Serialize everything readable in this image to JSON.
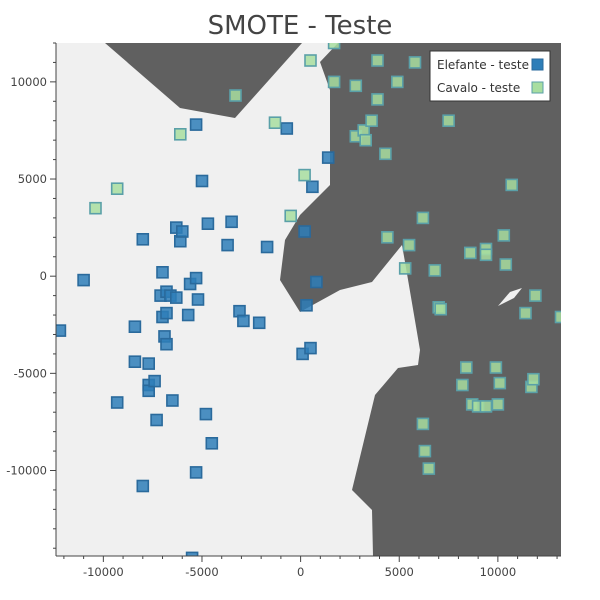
{
  "chart_data": {
    "type": "scatter",
    "title": "SMOTE - Teste",
    "xlabel": "",
    "ylabel": "",
    "xlim": [
      -12400,
      13200
    ],
    "ylim": [
      -14400,
      12000
    ],
    "x_ticks": [
      -10000,
      -5000,
      0,
      5000,
      10000
    ],
    "y_ticks": [
      -10000,
      -5000,
      0,
      5000,
      10000
    ],
    "grid": false,
    "legend_position": "top-right",
    "background_regions": [
      {
        "class": "Elefante - teste",
        "color": "#f0f0f0"
      },
      {
        "class": "Cavalo - teste",
        "color": "#606060"
      }
    ],
    "series": [
      {
        "name": "Elefante - teste",
        "color": "#2e7eb8",
        "points": [
          [
            -12200,
            -2800
          ],
          [
            -11000,
            -200
          ],
          [
            -9300,
            -6500
          ],
          [
            -8400,
            -2600
          ],
          [
            -8400,
            -4400
          ],
          [
            -8000,
            1900
          ],
          [
            -8000,
            -10800
          ],
          [
            -7700,
            -4500
          ],
          [
            -7700,
            -5600
          ],
          [
            -7700,
            -5900
          ],
          [
            -7400,
            -5400
          ],
          [
            -7300,
            -7400
          ],
          [
            -7100,
            -1000
          ],
          [
            -7000,
            200
          ],
          [
            -7000,
            -2100
          ],
          [
            -6900,
            -3100
          ],
          [
            -6800,
            -800
          ],
          [
            -6800,
            -1900
          ],
          [
            -6800,
            -3500
          ],
          [
            -6600,
            -1000
          ],
          [
            -6500,
            -6400
          ],
          [
            -6300,
            2500
          ],
          [
            -6300,
            -1100
          ],
          [
            -6100,
            1800
          ],
          [
            -6000,
            2300
          ],
          [
            -5700,
            -2000
          ],
          [
            -5600,
            -400
          ],
          [
            -5300,
            -100
          ],
          [
            -5300,
            7800
          ],
          [
            -5300,
            -10100
          ],
          [
            -5200,
            -1200
          ],
          [
            -5000,
            4900
          ],
          [
            -4800,
            -7100
          ],
          [
            -4700,
            2700
          ],
          [
            -4500,
            -8600
          ],
          [
            -3700,
            1600
          ],
          [
            -3500,
            2800
          ],
          [
            -3100,
            -1800
          ],
          [
            -2900,
            -2300
          ],
          [
            -2100,
            -2400
          ],
          [
            -1700,
            1500
          ],
          [
            -700,
            7600
          ],
          [
            100,
            -4000
          ],
          [
            200,
            2300
          ],
          [
            300,
            -1500
          ],
          [
            500,
            -3700
          ],
          [
            600,
            4600
          ],
          [
            800,
            -300
          ],
          [
            1400,
            6100
          ],
          [
            -5500,
            -14500
          ]
        ]
      },
      {
        "name": "Cavalo - teste",
        "color": "#a8dea0",
        "points": [
          [
            -10400,
            3500
          ],
          [
            -9300,
            4500
          ],
          [
            -6100,
            7300
          ],
          [
            -3300,
            9300
          ],
          [
            -1300,
            7900
          ],
          [
            -500,
            3100
          ],
          [
            200,
            5200
          ],
          [
            500,
            11100
          ],
          [
            1700,
            12000
          ],
          [
            1700,
            10000
          ],
          [
            2800,
            9800
          ],
          [
            2800,
            7200
          ],
          [
            3200,
            7500
          ],
          [
            3300,
            7000
          ],
          [
            3600,
            8000
          ],
          [
            3900,
            11100
          ],
          [
            3900,
            9100
          ],
          [
            4300,
            6300
          ],
          [
            4400,
            2000
          ],
          [
            4900,
            10000
          ],
          [
            5300,
            400
          ],
          [
            5500,
            1600
          ],
          [
            5800,
            11000
          ],
          [
            6200,
            3000
          ],
          [
            6200,
            -7600
          ],
          [
            6300,
            -9000
          ],
          [
            6500,
            -9900
          ],
          [
            6800,
            300
          ],
          [
            7000,
            -1600
          ],
          [
            7100,
            -1700
          ],
          [
            7500,
            8000
          ],
          [
            8200,
            -5600
          ],
          [
            8400,
            -4700
          ],
          [
            8600,
            1200
          ],
          [
            8700,
            -6600
          ],
          [
            9000,
            -6700
          ],
          [
            9400,
            1400
          ],
          [
            9400,
            1100
          ],
          [
            9400,
            -6700
          ],
          [
            9900,
            -4700
          ],
          [
            10000,
            -6600
          ],
          [
            10100,
            -5500
          ],
          [
            10300,
            2100
          ],
          [
            10400,
            600
          ],
          [
            10700,
            4700
          ],
          [
            11400,
            -1900
          ],
          [
            11700,
            -5700
          ],
          [
            11800,
            -5300
          ],
          [
            11900,
            -1000
          ],
          [
            13200,
            -2100
          ]
        ]
      }
    ]
  }
}
